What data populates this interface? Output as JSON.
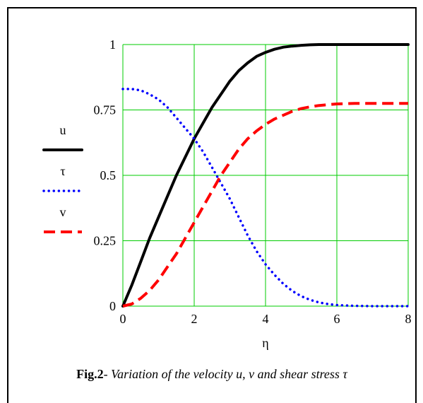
{
  "caption": {
    "label": "Fig.2",
    "separator": "- ",
    "text": "Variation of the velocity u, v and shear stress τ"
  },
  "chart_data": {
    "type": "line",
    "xlabel": "η",
    "ylabel": "",
    "xlim": [
      0,
      8
    ],
    "ylim": [
      0,
      1
    ],
    "x_ticks": [
      "0",
      "2",
      "4",
      "6",
      "8"
    ],
    "y_ticks": [
      "0",
      "0.25",
      "0.5",
      "0.75",
      "1"
    ],
    "grid": true,
    "grid_color": "#00cc00",
    "legend_position": "left",
    "series": [
      {
        "name": "u",
        "color": "#000000",
        "style": "solid",
        "x": [
          0,
          0.25,
          0.5,
          0.75,
          1,
          1.25,
          1.5,
          1.75,
          2,
          2.25,
          2.5,
          2.75,
          3,
          3.25,
          3.5,
          3.75,
          4,
          4.25,
          4.5,
          4.75,
          5,
          5.25,
          5.5,
          5.75,
          6,
          6.5,
          7,
          7.5,
          8
        ],
        "y": [
          0,
          0.08,
          0.17,
          0.26,
          0.34,
          0.42,
          0.5,
          0.57,
          0.64,
          0.7,
          0.76,
          0.81,
          0.86,
          0.9,
          0.93,
          0.955,
          0.97,
          0.982,
          0.99,
          0.994,
          0.997,
          0.999,
          1,
          1,
          1,
          1,
          1,
          1,
          1
        ]
      },
      {
        "name": "τ",
        "color": "#0000ff",
        "style": "dotted",
        "x": [
          0,
          0.25,
          0.5,
          0.75,
          1,
          1.25,
          1.5,
          1.75,
          2,
          2.25,
          2.5,
          2.75,
          3,
          3.25,
          3.5,
          3.75,
          4,
          4.25,
          4.5,
          4.75,
          5,
          5.25,
          5.5,
          5.75,
          6,
          6.5,
          7,
          7.5,
          8
        ],
        "y": [
          0.83,
          0.83,
          0.825,
          0.81,
          0.79,
          0.76,
          0.72,
          0.68,
          0.64,
          0.59,
          0.53,
          0.47,
          0.41,
          0.34,
          0.27,
          0.21,
          0.16,
          0.12,
          0.085,
          0.058,
          0.038,
          0.024,
          0.014,
          0.008,
          0.004,
          0.001,
          0,
          0,
          0
        ]
      },
      {
        "name": "v",
        "color": "#ff0000",
        "style": "dashed",
        "x": [
          0,
          0.25,
          0.5,
          0.75,
          1,
          1.25,
          1.5,
          1.75,
          2,
          2.25,
          2.5,
          2.75,
          3,
          3.25,
          3.5,
          3.75,
          4,
          4.25,
          4.5,
          4.75,
          5,
          5.25,
          5.5,
          5.75,
          6,
          6.5,
          7,
          7.5,
          8
        ],
        "y": [
          0,
          0.008,
          0.03,
          0.06,
          0.1,
          0.15,
          0.2,
          0.26,
          0.32,
          0.38,
          0.44,
          0.5,
          0.55,
          0.6,
          0.64,
          0.67,
          0.695,
          0.715,
          0.73,
          0.745,
          0.755,
          0.762,
          0.767,
          0.77,
          0.773,
          0.775,
          0.775,
          0.775,
          0.775
        ]
      }
    ]
  }
}
